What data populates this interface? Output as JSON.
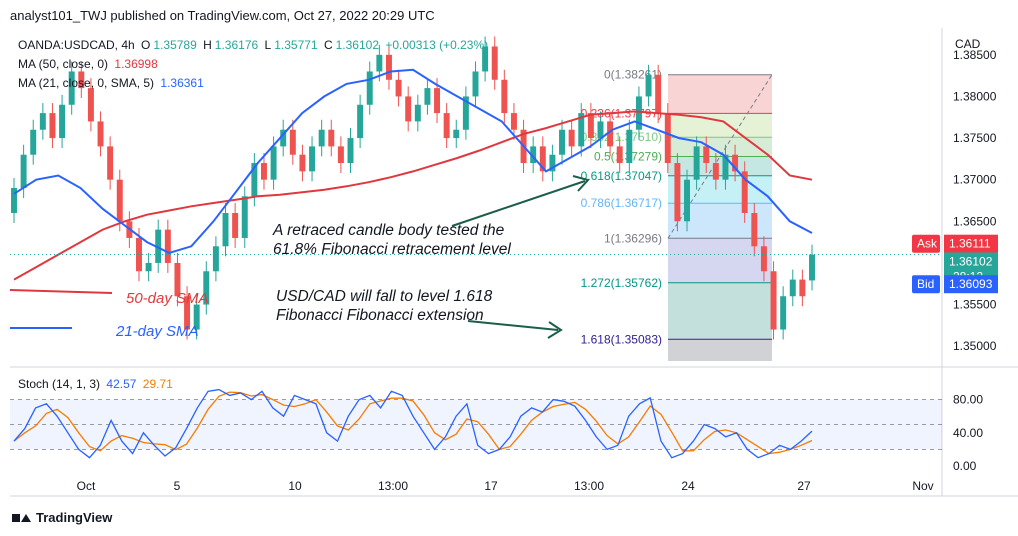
{
  "header": {
    "published_line": "analyst101_TWJ published on TradingView.com, Oct 27, 2022 20:29 UTC"
  },
  "legend": {
    "symbol": "OANDA:USDCAD, 4h",
    "o_label": "O",
    "o_value": "1.35789",
    "h_label": "H",
    "h_value": "1.36176",
    "l_label": "L",
    "l_value": "1.35771",
    "c_label": "C",
    "c_value": "1.36102",
    "change": "+0.00313 (+0.23%)",
    "ma50_label": "MA (50, close, 0)",
    "ma50_value": "1.36998",
    "ma21_label": "MA (21, close, 0, SMA, 5)",
    "ma21_value": "1.36361"
  },
  "stoch": {
    "label": "Stoch (14, 1, 3)",
    "k_value": "42.57",
    "d_value": "29.71"
  },
  "axis": {
    "currency": "CAD",
    "price_ticks": [
      "1.38500",
      "1.38000",
      "1.37500",
      "1.37000",
      "1.36500",
      "1.35500",
      "1.35000"
    ],
    "stoch_ticks": [
      "80.00",
      "40.00",
      "0.00"
    ],
    "time_ticks": [
      "Oct",
      "5",
      "10",
      "13:00",
      "17",
      "13:00",
      "24",
      "27",
      "Nov"
    ]
  },
  "price_labels": {
    "ask_label": "Ask",
    "ask_value": "1.36111",
    "last_value": "1.36102",
    "countdown": "28:12",
    "bid_label": "Bid",
    "bid_value": "1.36093"
  },
  "fib": {
    "levels": [
      {
        "label": "0(1.38261)"
      },
      {
        "label": "0.236(1.37797)"
      },
      {
        "label": "0.382(1.37510)"
      },
      {
        "label": "0.5(1.37279)"
      },
      {
        "label": "0.618(1.37047)"
      },
      {
        "label": "0.786(1.36717)"
      },
      {
        "label": "1(1.36296)"
      },
      {
        "label": "1.272(1.35762)"
      },
      {
        "label": "1.618(1.35083)"
      }
    ]
  },
  "annotations": {
    "retrace_line1": "A retraced candle body tested the",
    "retrace_line2": "61.8% Fibonacci retracement level",
    "fall_line1": "USD/CAD will fall to level 1.618",
    "fall_line2": "Fibonacci Fibonacci extension",
    "ma50_text": "50-day SMA",
    "ma21_text": "21-day SMA"
  },
  "footer": {
    "brand": "TradingView"
  },
  "colors": {
    "up": "#26a69a",
    "down": "#ef5350",
    "ma50": "#e0383e",
    "ma21": "#2962ff",
    "stoch_k": "#2962ff",
    "stoch_d": "#f57c00",
    "ask": "#f23645",
    "bid": "#2962ff"
  },
  "chart_data": {
    "type": "candlestick",
    "symbol": "OANDA:USDCAD",
    "timeframe": "4h",
    "y_range": [
      1.3475,
      1.3875
    ],
    "ma50": [
      1.358,
      1.3595,
      1.361,
      1.3625,
      1.364,
      1.365,
      1.3658,
      1.3663,
      1.3668,
      1.3672,
      1.3676,
      1.368,
      1.3682,
      1.3685,
      1.3688,
      1.3692,
      1.3697,
      1.3703,
      1.371,
      1.3718,
      1.3726,
      1.3735,
      1.3745,
      1.3755,
      1.3762,
      1.377,
      1.3778,
      1.378,
      1.3782,
      1.378,
      1.3778,
      1.3775,
      1.377,
      1.375,
      1.373,
      1.3705,
      1.37
    ],
    "ma21": [
      1.3683,
      1.37,
      1.3705,
      1.369,
      1.3665,
      1.3645,
      1.3625,
      1.3612,
      1.362,
      1.365,
      1.3685,
      1.372,
      1.375,
      1.378,
      1.38,
      1.3815,
      1.382,
      1.383,
      1.3832,
      1.3815,
      1.38,
      1.3785,
      1.377,
      1.374,
      1.371,
      1.3725,
      1.374,
      1.376,
      1.377,
      1.376,
      1.375,
      1.3745,
      1.373,
      1.37,
      1.368,
      1.365,
      1.3636
    ],
    "candles": [
      [
        1.366,
        1.369
      ],
      [
        1.369,
        1.373
      ],
      [
        1.373,
        1.376
      ],
      [
        1.376,
        1.378
      ],
      [
        1.378,
        1.375
      ],
      [
        1.375,
        1.379
      ],
      [
        1.379,
        1.383
      ],
      [
        1.383,
        1.381
      ],
      [
        1.381,
        1.377
      ],
      [
        1.377,
        1.374
      ],
      [
        1.374,
        1.37
      ],
      [
        1.37,
        1.365
      ],
      [
        1.365,
        1.363
      ],
      [
        1.363,
        1.359
      ],
      [
        1.359,
        1.36
      ],
      [
        1.36,
        1.364
      ],
      [
        1.364,
        1.36
      ],
      [
        1.36,
        1.356
      ],
      [
        1.356,
        1.352
      ],
      [
        1.352,
        1.355
      ],
      [
        1.355,
        1.359
      ],
      [
        1.359,
        1.362
      ],
      [
        1.362,
        1.366
      ],
      [
        1.366,
        1.363
      ],
      [
        1.363,
        1.368
      ],
      [
        1.368,
        1.372
      ],
      [
        1.372,
        1.37
      ],
      [
        1.37,
        1.374
      ],
      [
        1.374,
        1.376
      ],
      [
        1.376,
        1.373
      ],
      [
        1.373,
        1.371
      ],
      [
        1.371,
        1.374
      ],
      [
        1.374,
        1.376
      ],
      [
        1.376,
        1.374
      ],
      [
        1.374,
        1.372
      ],
      [
        1.372,
        1.375
      ],
      [
        1.375,
        1.379
      ],
      [
        1.379,
        1.383
      ],
      [
        1.383,
        1.385
      ],
      [
        1.385,
        1.382
      ],
      [
        1.382,
        1.38
      ],
      [
        1.38,
        1.377
      ],
      [
        1.377,
        1.379
      ],
      [
        1.379,
        1.381
      ],
      [
        1.381,
        1.378
      ],
      [
        1.378,
        1.375
      ],
      [
        1.375,
        1.376
      ],
      [
        1.376,
        1.38
      ],
      [
        1.38,
        1.383
      ],
      [
        1.383,
        1.386
      ],
      [
        1.386,
        1.382
      ],
      [
        1.382,
        1.378
      ],
      [
        1.378,
        1.376
      ],
      [
        1.376,
        1.372
      ],
      [
        1.372,
        1.374
      ],
      [
        1.374,
        1.371
      ],
      [
        1.371,
        1.373
      ],
      [
        1.373,
        1.376
      ],
      [
        1.376,
        1.374
      ],
      [
        1.374,
        1.378
      ],
      [
        1.378,
        1.375
      ],
      [
        1.375,
        1.377
      ],
      [
        1.377,
        1.374
      ],
      [
        1.374,
        1.372
      ],
      [
        1.372,
        1.376
      ],
      [
        1.376,
        1.38
      ],
      [
        1.38,
        1.3826
      ],
      [
        1.3826,
        1.378
      ],
      [
        1.378,
        1.372
      ],
      [
        1.372,
        1.365
      ],
      [
        1.365,
        1.37
      ],
      [
        1.37,
        1.374
      ],
      [
        1.374,
        1.372
      ],
      [
        1.372,
        1.37
      ],
      [
        1.37,
        1.373
      ],
      [
        1.373,
        1.371
      ],
      [
        1.371,
        1.366
      ],
      [
        1.366,
        1.362
      ],
      [
        1.362,
        1.359
      ],
      [
        1.359,
        1.352
      ],
      [
        1.352,
        1.356
      ],
      [
        1.356,
        1.358
      ],
      [
        1.358,
        1.356
      ],
      [
        1.3579,
        1.361
      ]
    ]
  }
}
